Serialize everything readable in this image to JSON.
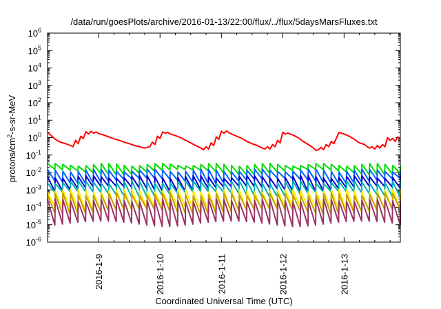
{
  "chart_data": {
    "type": "line",
    "title": "/data/run/goesPlots/archive/2016-01-13/22:00/flux/../flux/5daysMarsFluxes.txt",
    "xlabel": "Coordinated Universal Time (UTC)",
    "ylabel": "protons/cm2-s-sr-MeV",
    "ylabel_parts": {
      "prefix": "protons/cm",
      "sup": "2",
      "suffix": "-s-sr-MeV"
    },
    "y_scale": "log",
    "ylim": [
      1e-06,
      1000000.0
    ],
    "y_ticks": [
      {
        "base": "10",
        "exp": "-6",
        "value": 1e-06
      },
      {
        "base": "10",
        "exp": "-5",
        "value": 1e-05
      },
      {
        "base": "10",
        "exp": "-4",
        "value": 0.0001
      },
      {
        "base": "10",
        "exp": "-3",
        "value": 0.001
      },
      {
        "base": "10",
        "exp": "-2",
        "value": 0.01
      },
      {
        "base": "10",
        "exp": "-1",
        "value": 0.1
      },
      {
        "base": "10",
        "exp": "0",
        "value": 1
      },
      {
        "base": "10",
        "exp": "1",
        "value": 10
      },
      {
        "base": "10",
        "exp": "2",
        "value": 100
      },
      {
        "base": "10",
        "exp": "3",
        "value": 1000
      },
      {
        "base": "10",
        "exp": "4",
        "value": 10000
      },
      {
        "base": "10",
        "exp": "5",
        "value": 100000
      },
      {
        "base": "10",
        "exp": "6",
        "value": 1000000
      }
    ],
    "xlim": [
      "2016-01-08 04:00",
      "2016-01-13 22:00"
    ],
    "x_ticks": [
      "2016-1-9",
      "2016-1-10",
      "2016-1-11",
      "2016-1-12",
      "2016-1-13"
    ],
    "grid": false,
    "legend": "none",
    "series": [
      {
        "color": "#ff0000",
        "x": [
          "2016-01-08 04:00",
          "2016-01-08 05:00",
          "2016-01-08 06:00",
          "2016-01-08 07:00",
          "2016-01-08 08:00",
          "2016-01-08 09:00",
          "2016-01-08 10:00",
          "2016-01-08 11:00",
          "2016-01-08 12:00",
          "2016-01-08 13:00",
          "2016-01-08 14:00",
          "2016-01-08 15:00",
          "2016-01-08 16:00",
          "2016-01-08 17:00",
          "2016-01-08 18:00",
          "2016-01-08 19:00",
          "2016-01-08 20:00",
          "2016-01-08 21:00",
          "2016-01-08 22:00",
          "2016-01-08 23:00",
          "2016-01-09 00:00",
          "2016-01-09 02:00",
          "2016-01-09 04:00",
          "2016-01-09 06:00",
          "2016-01-09 08:00",
          "2016-01-09 10:00",
          "2016-01-09 12:00",
          "2016-01-09 14:00",
          "2016-01-09 16:00",
          "2016-01-09 18:00",
          "2016-01-09 20:00",
          "2016-01-09 21:00",
          "2016-01-09 22:00",
          "2016-01-09 23:00",
          "2016-01-10 00:00",
          "2016-01-10 01:00",
          "2016-01-10 02:00",
          "2016-01-10 03:00",
          "2016-01-10 04:00",
          "2016-01-10 06:00",
          "2016-01-10 08:00",
          "2016-01-10 10:00",
          "2016-01-10 12:00",
          "2016-01-10 14:00",
          "2016-01-10 16:00",
          "2016-01-10 17:00",
          "2016-01-10 18:00",
          "2016-01-10 19:00",
          "2016-01-10 20:00",
          "2016-01-10 21:00",
          "2016-01-10 22:00",
          "2016-01-10 23:00",
          "2016-01-11 00:00",
          "2016-01-11 01:00",
          "2016-01-11 02:00",
          "2016-01-11 03:00",
          "2016-01-11 04:00",
          "2016-01-11 06:00",
          "2016-01-11 08:00",
          "2016-01-11 10:00",
          "2016-01-11 12:00",
          "2016-01-11 14:00",
          "2016-01-11 16:00",
          "2016-01-11 17:00",
          "2016-01-11 18:00",
          "2016-01-11 19:00",
          "2016-01-11 20:00",
          "2016-01-11 21:00",
          "2016-01-11 22:00",
          "2016-01-11 23:00",
          "2016-01-12 00:00",
          "2016-01-12 01:00",
          "2016-01-12 02:00",
          "2016-01-12 04:00",
          "2016-01-12 06:00",
          "2016-01-12 08:00",
          "2016-01-12 10:00",
          "2016-01-12 12:00",
          "2016-01-12 13:00",
          "2016-01-12 14:00",
          "2016-01-12 15:00",
          "2016-01-12 16:00",
          "2016-01-12 17:00",
          "2016-01-12 18:00",
          "2016-01-12 19:00",
          "2016-01-12 20:00",
          "2016-01-12 22:00",
          "2016-01-13 00:00",
          "2016-01-13 02:00",
          "2016-01-13 04:00",
          "2016-01-13 06:00",
          "2016-01-13 08:00",
          "2016-01-13 09:00",
          "2016-01-13 10:00",
          "2016-01-13 11:00",
          "2016-01-13 12:00",
          "2016-01-13 13:00",
          "2016-01-13 14:00",
          "2016-01-13 15:00",
          "2016-01-13 16:00",
          "2016-01-13 17:00",
          "2016-01-13 18:00",
          "2016-01-13 19:00",
          "2016-01-13 20:00",
          "2016-01-13 21:00",
          "2016-01-13 22:00"
        ],
        "y": [
          2.0,
          1.5,
          1.1,
          0.8,
          0.65,
          0.55,
          0.5,
          0.45,
          0.4,
          0.35,
          0.3,
          0.7,
          0.45,
          1.2,
          0.9,
          2.2,
          1.6,
          2.3,
          1.8,
          2.1,
          1.7,
          1.4,
          1.1,
          0.85,
          0.7,
          0.55,
          0.45,
          0.35,
          0.3,
          0.25,
          0.3,
          0.55,
          0.4,
          1.2,
          0.9,
          2.1,
          1.8,
          2.0,
          1.6,
          1.3,
          1.0,
          0.7,
          0.5,
          0.35,
          0.25,
          0.2,
          0.3,
          0.22,
          0.5,
          0.35,
          1.1,
          0.8,
          2.3,
          1.8,
          2.4,
          1.9,
          1.6,
          1.2,
          0.9,
          0.6,
          0.45,
          0.35,
          0.25,
          0.22,
          0.3,
          0.22,
          0.4,
          0.3,
          0.7,
          0.5,
          2.0,
          1.6,
          1.8,
          1.4,
          1.0,
          0.6,
          0.4,
          0.25,
          0.18,
          0.2,
          0.28,
          0.2,
          0.4,
          0.3,
          0.6,
          0.45,
          2.0,
          1.6,
          1.2,
          0.8,
          0.5,
          0.4,
          0.3,
          0.25,
          0.3,
          0.22,
          0.35,
          0.25,
          0.4,
          0.3,
          1.0,
          0.7,
          0.9,
          0.6,
          1.1,
          0.9
        ]
      },
      {
        "color": "#00dd00",
        "period_hours": 3,
        "high": 0.028,
        "low": 0.011
      },
      {
        "color": "#0060ff",
        "period_hours": 3,
        "high": 0.013,
        "low": 0.0035
      },
      {
        "color": "#0000cc",
        "period_hours": 3,
        "high": 0.0055,
        "low": 0.0012
      },
      {
        "color": "#00b0b0",
        "period_hours": 3,
        "high": 0.0028,
        "low": 0.0006
      },
      {
        "color": "#ffee00",
        "period_hours": 3,
        "high": 0.0009,
        "low": 8e-05
      },
      {
        "color": "#c0a000",
        "period_hours": 3,
        "high": 0.00055,
        "low": 6e-05
      },
      {
        "color": "#993366",
        "period_hours": 3,
        "high": 0.00025,
        "low": 1.2e-05
      }
    ]
  }
}
